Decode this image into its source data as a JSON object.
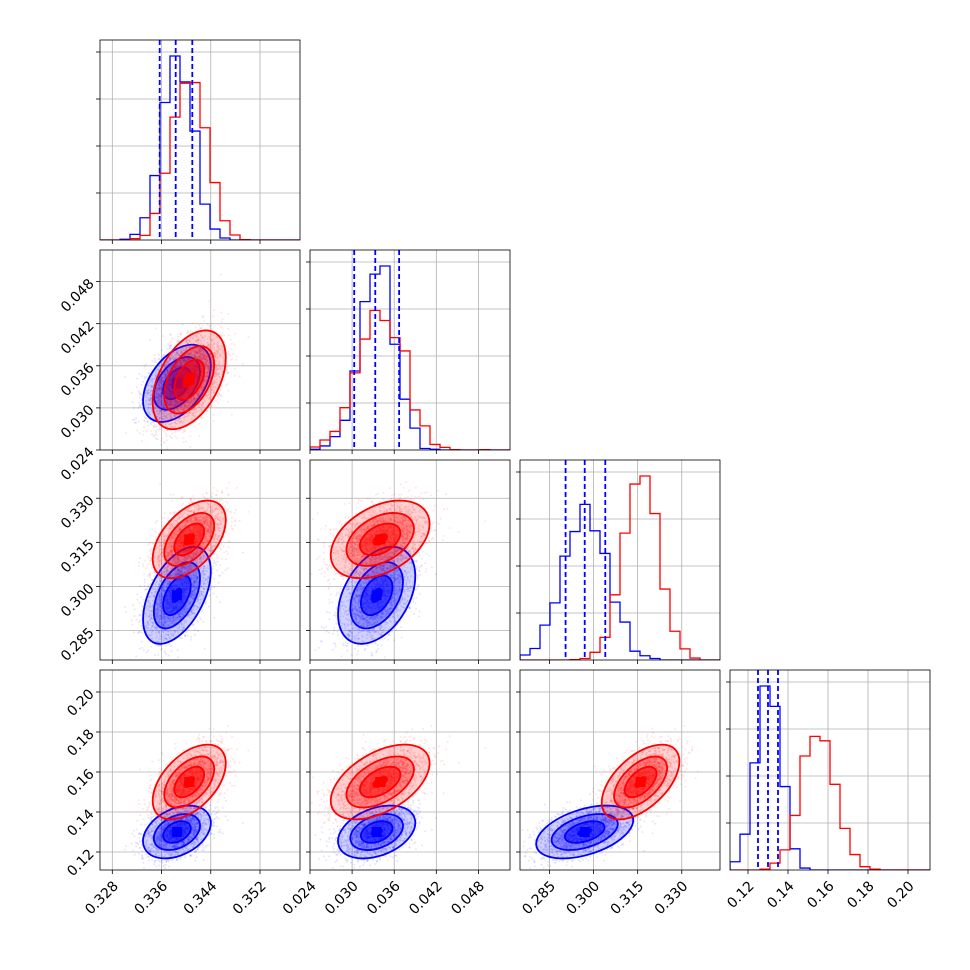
{
  "chart_data": {
    "type": "corner",
    "grid": true,
    "colors": {
      "series_a": "#0000ff",
      "series_b": "#ff0000"
    },
    "parameters": [
      {
        "range": [
          0.326,
          0.3585
        ],
        "ticks": [
          0.328,
          0.336,
          0.344,
          0.352
        ],
        "tick_labels": [
          "0.328",
          "0.336",
          "0.344",
          "0.352"
        ]
      },
      {
        "range": [
          0.024,
          0.0525
        ],
        "ticks": [
          0.024,
          0.03,
          0.036,
          0.042,
          0.048
        ],
        "tick_labels": [
          "0.024",
          "0.030",
          "0.036",
          "0.042",
          "0.048"
        ]
      },
      {
        "range": [
          0.275,
          0.343
        ],
        "ticks": [
          0.285,
          0.3,
          0.315,
          0.33
        ],
        "tick_labels": [
          "0.285",
          "0.300",
          "0.315",
          "0.330"
        ]
      },
      {
        "range": [
          0.111,
          0.211
        ],
        "ticks": [
          0.12,
          0.14,
          0.16,
          0.18,
          0.2
        ],
        "tick_labels": [
          "0.12",
          "0.14",
          "0.16",
          "0.18",
          "0.20"
        ]
      }
    ],
    "series": [
      {
        "color": "#0000ff",
        "mean": [
          0.3385,
          0.0335,
          0.297,
          0.13
        ],
        "sd": [
          0.0025,
          0.0025,
          0.0075,
          0.006
        ],
        "quantiles": [
          [
            0.3357,
            0.3383,
            0.341
          ],
          [
            0.0303,
            0.0333,
            0.0367
          ],
          [
            0.2905,
            0.297,
            0.304
          ],
          [
            0.125,
            0.13,
            0.135
          ]
        ],
        "correlation": [
          [
            1,
            0.45,
            0.5,
            0.35
          ],
          [
            0.45,
            1,
            0.4,
            0.35
          ],
          [
            0.5,
            0.4,
            1,
            0.45
          ],
          [
            0.35,
            0.35,
            0.45,
            1
          ]
        ]
      },
      {
        "color": "#ff0000",
        "mean": [
          0.3405,
          0.034,
          0.316,
          0.155
        ],
        "sd": [
          0.0027,
          0.0032,
          0.006,
          0.0085
        ],
        "quantiles": [],
        "correlation": [
          [
            1,
            0.45,
            0.5,
            0.5
          ],
          [
            0.45,
            1,
            0.4,
            0.5
          ],
          [
            0.5,
            0.4,
            1,
            0.55
          ],
          [
            0.5,
            0.5,
            0.55,
            1
          ]
        ]
      }
    ]
  }
}
